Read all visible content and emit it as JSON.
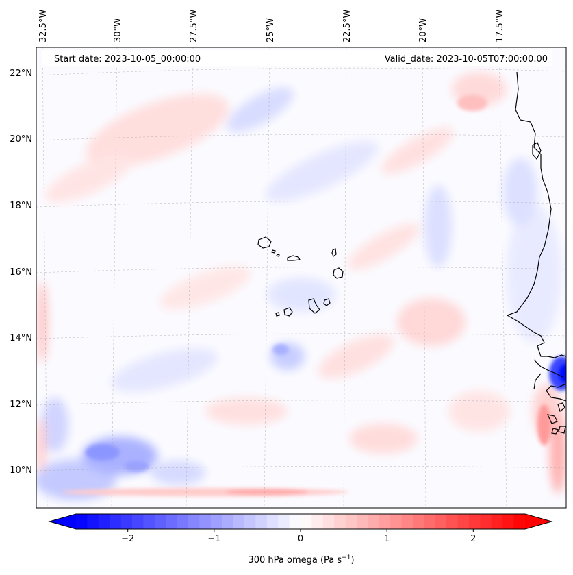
{
  "header": {
    "start_date": "Start date: 2023-10-05_00:00:00",
    "valid_date": "Valid_date: 2023-10-05T07:00:00.00"
  },
  "lon_labels": [
    "32.5°W",
    "30°W",
    "27.5°W",
    "25°W",
    "22.5°W",
    "20°W",
    "17.5°W"
  ],
  "lat_labels": [
    "22°N",
    "20°N",
    "18°N",
    "16°N",
    "14°N",
    "12°N",
    "10°N"
  ],
  "colorbar": {
    "label_main": "300 hPa omega (Pa s",
    "label_exp": "−1",
    "label_close": ")",
    "ticks": [
      {
        "value": -2,
        "label": "−2"
      },
      {
        "value": -1,
        "label": "−1"
      },
      {
        "value": 0,
        "label": "0"
      },
      {
        "value": 1,
        "label": "1"
      },
      {
        "value": 2,
        "label": "2"
      }
    ],
    "vmin": -2.6,
    "vmax": 2.6,
    "levels": 40,
    "color_negative": "#0000ff",
    "color_zero": "#ffffff",
    "color_positive": "#ff0000"
  },
  "map": {
    "field": "300 hPa omega",
    "colormap": "bwr",
    "gridlines": true,
    "features": [
      "cape-verde-islands",
      "west-africa-coastline"
    ]
  }
}
